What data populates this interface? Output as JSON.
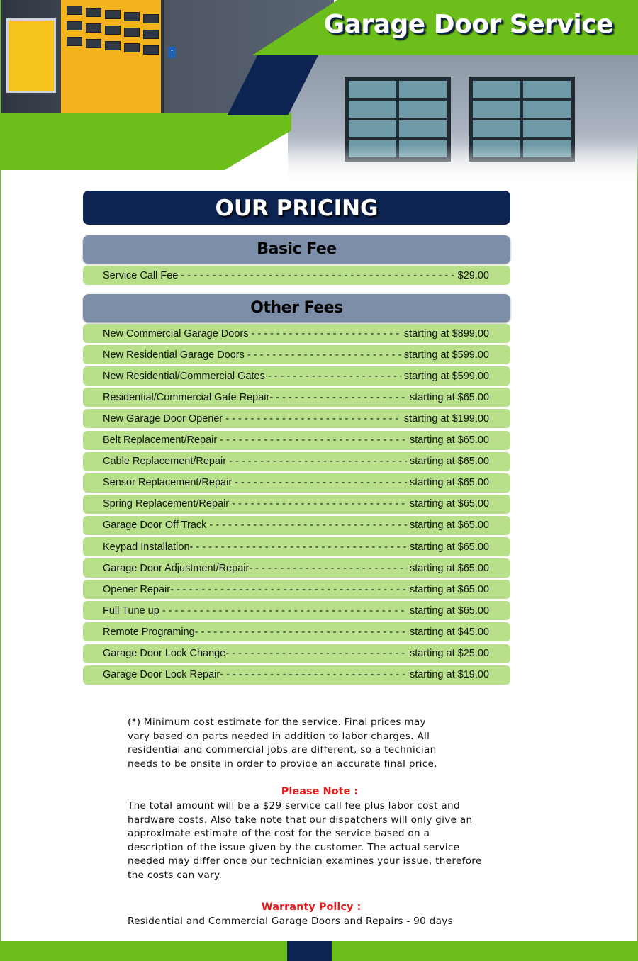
{
  "header": {
    "title": "Garage Door Service"
  },
  "pricing_title": "OUR PRICING",
  "basic": {
    "heading": "Basic Fee",
    "items": [
      {
        "label": "Service Call Fee",
        "price": "$29.00"
      }
    ]
  },
  "other": {
    "heading": "Other Fees",
    "items": [
      {
        "label": "New Commercial Garage Doors",
        "price": "starting at $899.00"
      },
      {
        "label": "New Residential Garage Doors",
        "price": "starting at $599.00"
      },
      {
        "label": "New Residential/Commercial Gates",
        "price": "starting at $599.00"
      },
      {
        "label": "Residential/Commercial Gate Repair-",
        "price": "starting at $65.00"
      },
      {
        "label": "New Garage Door Opener",
        "price": "starting at $199.00"
      },
      {
        "label": "Belt Replacement/Repair",
        "price": "starting at $65.00"
      },
      {
        "label": "Cable Replacement/Repair",
        "price": "starting at $65.00"
      },
      {
        "label": "Sensor Replacement/Repair",
        "price": "starting at $65.00"
      },
      {
        "label": "Spring Replacement/Repair",
        "price": "starting at $65.00"
      },
      {
        "label": "Garage Door Off Track",
        "price": "starting at $65.00"
      },
      {
        "label": "Keypad Installation-",
        "price": "starting at $65.00"
      },
      {
        "label": "Garage Door Adjustment/Repair-",
        "price": "starting at $65.00"
      },
      {
        "label": "Opener Repair-",
        "price": "starting at $65.00"
      },
      {
        "label": "Full Tune up",
        "price": "starting at $65.00"
      },
      {
        "label": "Remote Programing-",
        "price": "starting at $45.00"
      },
      {
        "label": "Garage Door Lock Change-",
        "price": "starting at $25.00"
      },
      {
        "label": "Garage Door Lock Repair-",
        "price": "starting at $19.00"
      }
    ]
  },
  "disclaimer": "(*) Minimum cost estimate for the service. Final prices may vary based on parts needed in addition to labor charges. All residential and commercial jobs are different, so a technician needs to be onsite in order to provide an accurate final price.",
  "please_note": {
    "heading": "Please Note :",
    "text": "The total amount will be a $29 service call fee plus labor cost and hardware costs. Also take note that our dispatchers will only give an approximate estimate of the cost for the service based on a description of the issue given by the customer. The actual service needed may differ once our technician examines your issue, therefore the costs can vary."
  },
  "warranty": {
    "heading": "Warranty Policy :",
    "text": "Residential and Commercial Garage Doors and Repairs - 90 days"
  },
  "colors": {
    "green": "#6cbf1a",
    "navy": "#0d2452",
    "section": "#7d8ea8",
    "row": "#b8e08a",
    "note_red": "#e31c1c"
  }
}
